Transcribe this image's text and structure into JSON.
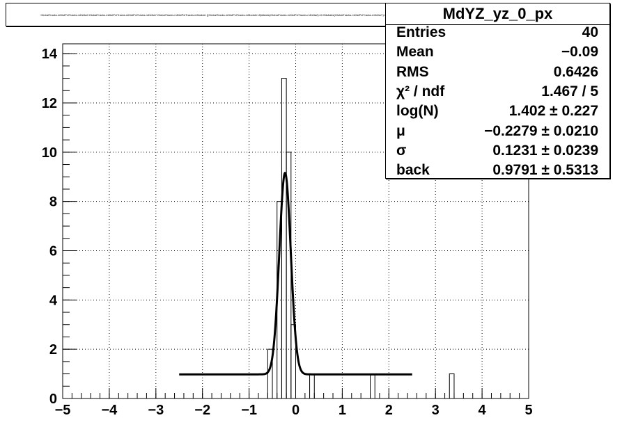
{
  "title": "GlobalTracks.mDistPxlTracks.mDelta2:GlobalTracks.mDistPxlTracks.mDistPxlTracks.mDeltaY:GlobalTracks.mDistPxlTracks.mModule {(GlobalTracks.mDistPxlTracks.mModule<8)&&abs(GlobalTracks.mDistPxlTracks.mDelta2)<0.05&&abs(GlobalTracks.mDistPxlTracks.mDeltaY)<0.5} yz projection",
  "stats": {
    "name": "MdYZ_yz_0_px",
    "rows": [
      {
        "label": "Entries",
        "value": "40"
      },
      {
        "label": "Mean",
        "value": "−0.09"
      },
      {
        "label": "RMS",
        "value": "0.6426"
      },
      {
        "label": "χ² / ndf",
        "value": "1.467 / 5"
      },
      {
        "label": "log(N)",
        "value": "1.402 ± 0.227"
      },
      {
        "label": "μ",
        "value": "−0.2279 ± 0.0210"
      },
      {
        "label": "σ",
        "value": "0.1231 ± 0.0239"
      },
      {
        "label": "back",
        "value": "0.9791 ± 0.5313"
      }
    ]
  },
  "chart_data": {
    "type": "bar",
    "histogram": true,
    "xlim": [
      -5,
      5
    ],
    "ylim": [
      0,
      14.4
    ],
    "xticks": [
      "−5",
      "−4",
      "−3",
      "−2",
      "−1",
      "0",
      "1",
      "2",
      "3",
      "4",
      "5"
    ],
    "yticks": [
      "0",
      "2",
      "4",
      "6",
      "8",
      "10",
      "12",
      "14"
    ],
    "grid": true,
    "bin_width": 0.1,
    "bins": [
      {
        "x0": -0.6,
        "value": 2
      },
      {
        "x0": -0.4,
        "value": 8
      },
      {
        "x0": -0.3,
        "value": 13
      },
      {
        "x0": -0.2,
        "value": 10
      },
      {
        "x0": -0.1,
        "value": 3
      },
      {
        "x0": 0.3,
        "value": 1
      },
      {
        "x0": 1.6,
        "value": 1
      },
      {
        "x0": 3.3,
        "value": 1
      }
    ],
    "fit": {
      "function": "gaussian_plus_constant",
      "log_n": 1.402,
      "mu": -0.2279,
      "sigma": 0.1231,
      "back": 0.9791,
      "range": [
        -2.5,
        2.5
      ]
    }
  }
}
